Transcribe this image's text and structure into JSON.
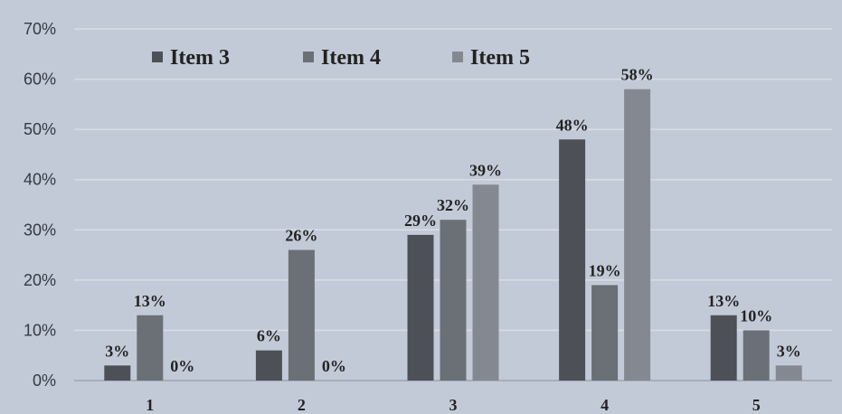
{
  "chart_data": {
    "type": "bar",
    "categories": [
      "1",
      "2",
      "3",
      "4",
      "5"
    ],
    "series": [
      {
        "name": "Item 3",
        "color": "#4d5157",
        "values": [
          3,
          6,
          29,
          48,
          13
        ],
        "labels": [
          "3%",
          "6%",
          "29%",
          "48%",
          "13%"
        ]
      },
      {
        "name": "Item 4",
        "color": "#6b6f76",
        "values": [
          13,
          26,
          32,
          19,
          10
        ],
        "labels": [
          "13%",
          "26%",
          "32%",
          "19%",
          "10%"
        ]
      },
      {
        "name": "Item 5",
        "color": "#848890",
        "values": [
          0,
          0,
          39,
          58,
          3
        ],
        "labels": [
          "0%",
          "0%",
          "39%",
          "58%",
          "3%"
        ]
      }
    ],
    "ylim": [
      0,
      70
    ],
    "yticks": [
      0,
      10,
      20,
      30,
      40,
      50,
      60,
      70
    ],
    "ytick_labels": [
      "0%",
      "10%",
      "20%",
      "30%",
      "40%",
      "50%",
      "60%",
      "70%"
    ],
    "grid": true,
    "legend_position": "top-left"
  }
}
